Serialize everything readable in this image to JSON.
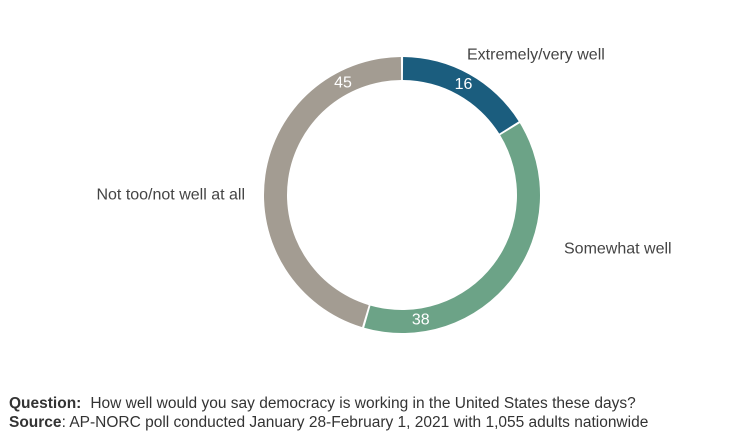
{
  "chart_data": {
    "type": "pie",
    "donut": true,
    "categories": [
      "Extremely/very well",
      "Somewhat well",
      "Not too/not well at all"
    ],
    "values": [
      16,
      38,
      45
    ],
    "colors": [
      "#1b5d7e",
      "#6ca387",
      "#a39c92"
    ],
    "legend": "none"
  },
  "footer": {
    "question_label": "Question:",
    "question_text": "How well would you say democracy is working in the United States these days?",
    "source_label": "Source",
    "source_text": ": AP-NORC poll conducted January 28-February 1, 2021 with 1,055 adults nationwide"
  }
}
